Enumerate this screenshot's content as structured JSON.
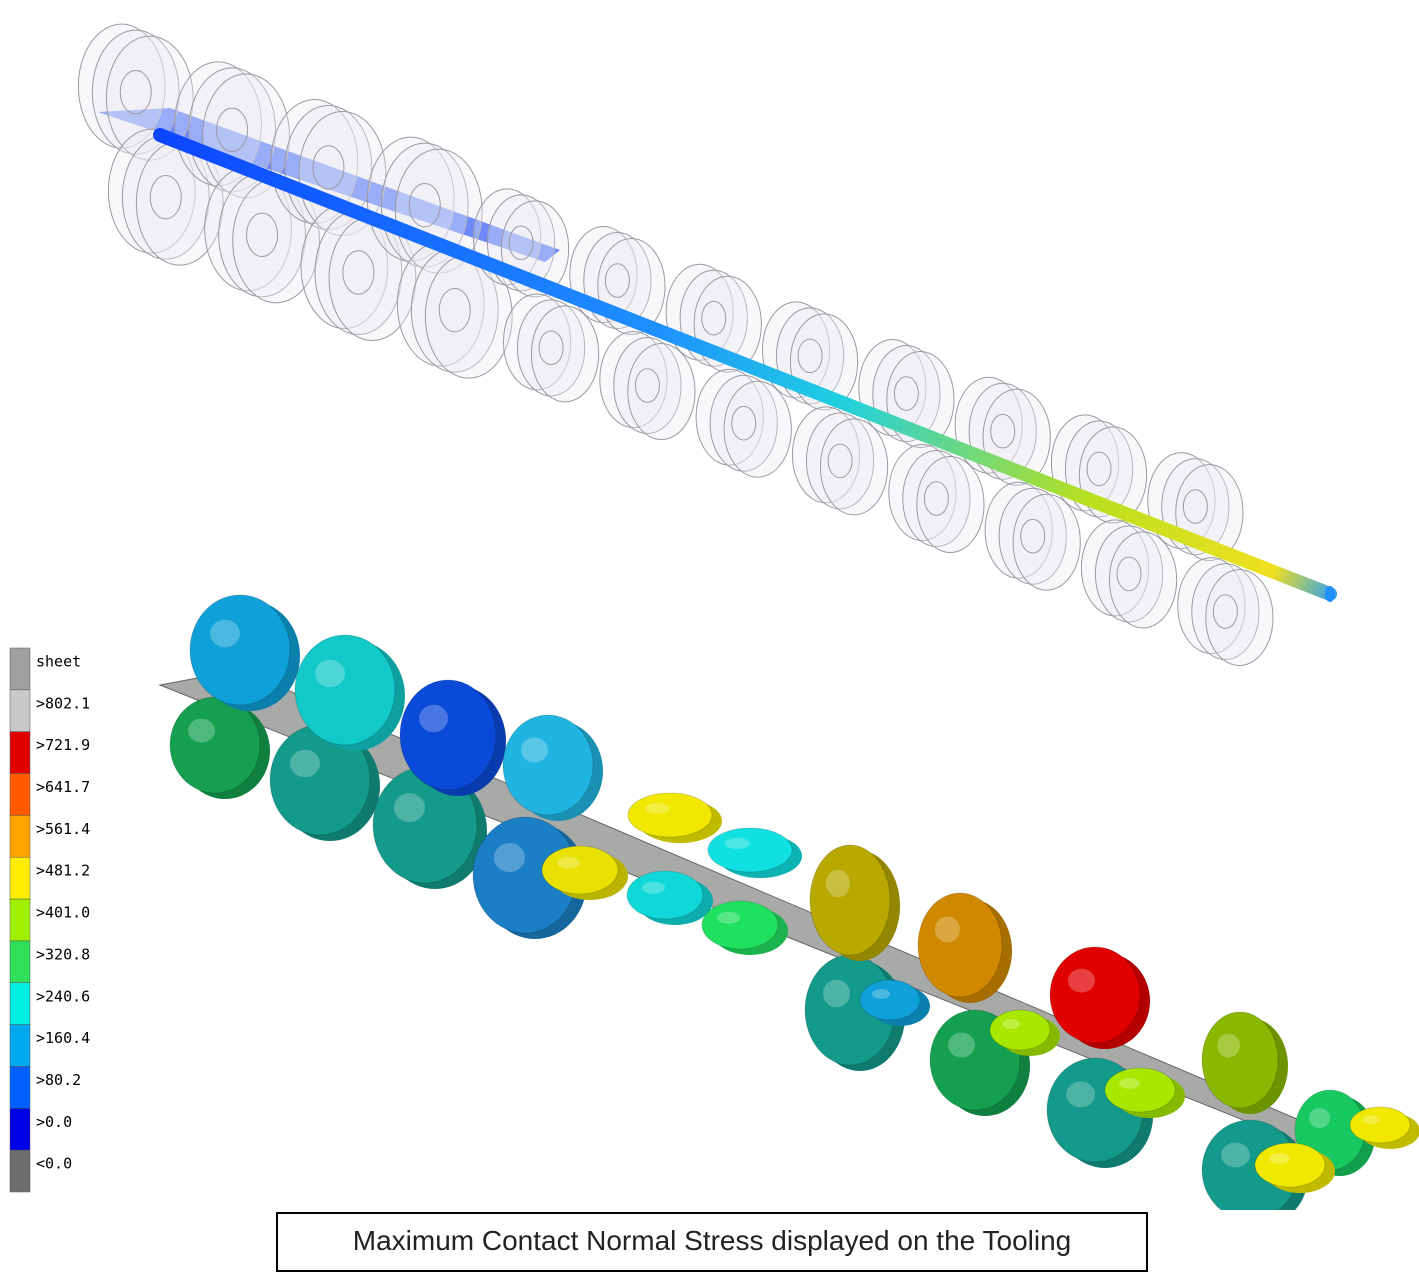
{
  "legend": {
    "items": [
      {
        "label": "sheet",
        "color": "#a0a0a0"
      },
      {
        "label": ">802.1",
        "color": "#c8c8c8"
      },
      {
        "label": ">721.9",
        "color": "#e00000"
      },
      {
        "label": ">641.7",
        "color": "#ff5a00"
      },
      {
        "label": ">561.4",
        "color": "#ffa500"
      },
      {
        "label": ">481.2",
        "color": "#ffee00"
      },
      {
        "label": ">401.0",
        "color": "#a0f000"
      },
      {
        "label": ">320.8",
        "color": "#2ee05a"
      },
      {
        "label": ">240.6",
        "color": "#00f0e6"
      },
      {
        "label": ">160.4",
        "color": "#00a8f0"
      },
      {
        "label": ">80.2",
        "color": "#0060ff"
      },
      {
        "label": ">0.0",
        "color": "#0000e6"
      },
      {
        "label": "<0.0",
        "color": "#6e6e6e"
      }
    ]
  },
  "caption": "Maximum Contact Normal Stress displayed on the Tooling"
}
